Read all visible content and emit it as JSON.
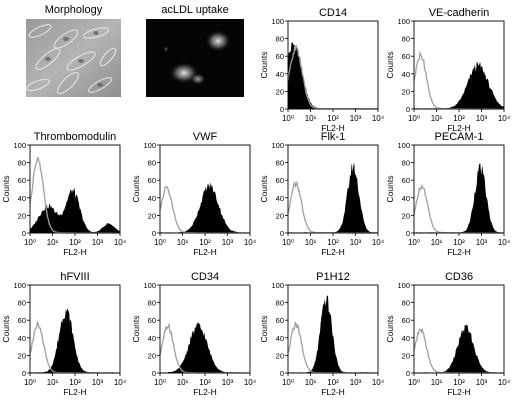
{
  "photos": [
    {
      "title": "Morphology",
      "kind": "phase-contrast"
    },
    {
      "title": "acLDL uptake",
      "kind": "fluorescence"
    }
  ],
  "chart_data": {
    "type": "area",
    "xlabel": "FL2-H",
    "ylabel": "Counts",
    "xscale": "log",
    "xlim": [
      1,
      10000
    ],
    "x_ticks": [
      "10⁰",
      "10¹",
      "10²",
      "10³",
      "10⁴"
    ],
    "y_ticks": [
      "0",
      "20",
      "40",
      "60",
      "80",
      "100"
    ],
    "ylim": [
      0,
      100
    ],
    "control_color": "#a0a0a0",
    "sample_color": "#000000",
    "panels": [
      {
        "title": "CD14",
        "control": {
          "mu": 0.35,
          "sd": 0.28,
          "h": 68
        },
        "sample": [
          {
            "mu": 0.25,
            "sd": 0.35,
            "h": 72
          }
        ]
      },
      {
        "title": "VE-cadherin",
        "control": {
          "mu": 0.3,
          "sd": 0.25,
          "h": 60
        },
        "sample": [
          {
            "mu": 2.85,
            "sd": 0.45,
            "h": 48
          }
        ]
      },
      {
        "title": "Thrombomodulin",
        "control": {
          "mu": 0.35,
          "sd": 0.25,
          "h": 82
        },
        "sample": [
          {
            "mu": 0.8,
            "sd": 0.4,
            "h": 30
          },
          {
            "mu": 1.9,
            "sd": 0.3,
            "h": 46
          },
          {
            "mu": 3.5,
            "sd": 0.25,
            "h": 10
          }
        ]
      },
      {
        "title": "VWF",
        "control": {
          "mu": 0.3,
          "sd": 0.25,
          "h": 50
        },
        "sample": [
          {
            "mu": 2.2,
            "sd": 0.4,
            "h": 52
          }
        ]
      },
      {
        "title": "Flk-1",
        "control": {
          "mu": 0.35,
          "sd": 0.25,
          "h": 55
        },
        "sample": [
          {
            "mu": 2.9,
            "sd": 0.25,
            "h": 73
          }
        ]
      },
      {
        "title": "PECAM-1",
        "control": {
          "mu": 0.35,
          "sd": 0.25,
          "h": 52
        },
        "sample": [
          {
            "mu": 2.95,
            "sd": 0.25,
            "h": 72
          }
        ]
      },
      {
        "title": "hFVIII",
        "control": {
          "mu": 0.35,
          "sd": 0.25,
          "h": 54
        },
        "sample": [
          {
            "mu": 1.6,
            "sd": 0.3,
            "h": 70
          }
        ]
      },
      {
        "title": "CD34",
        "control": {
          "mu": 0.35,
          "sd": 0.25,
          "h": 52
        },
        "sample": [
          {
            "mu": 1.7,
            "sd": 0.4,
            "h": 52
          }
        ]
      },
      {
        "title": "P1H12",
        "control": {
          "mu": 0.35,
          "sd": 0.25,
          "h": 54
        },
        "sample": [
          {
            "mu": 1.7,
            "sd": 0.25,
            "h": 82
          }
        ]
      },
      {
        "title": "CD36",
        "control": {
          "mu": 0.3,
          "sd": 0.25,
          "h": 48
        },
        "sample": [
          {
            "mu": 2.3,
            "sd": 0.35,
            "h": 50
          }
        ]
      }
    ]
  }
}
